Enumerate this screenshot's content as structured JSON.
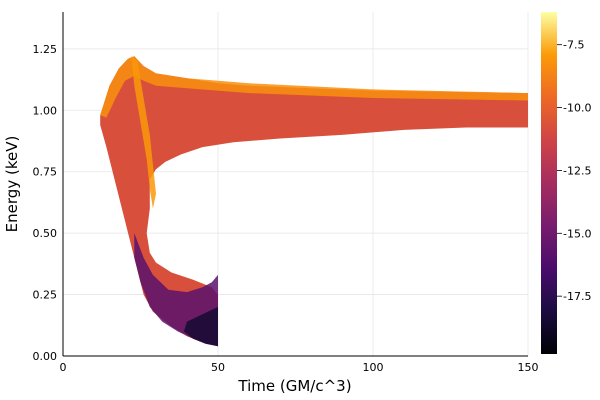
{
  "chart_data": {
    "type": "heatmap",
    "title": "",
    "xlabel": "Time (GM/c^3)",
    "ylabel": "Energy (keV)",
    "xlim": [
      0,
      150
    ],
    "ylim": [
      0,
      1.4
    ],
    "xticks": [
      0,
      50,
      100,
      150
    ],
    "xtick_labels": [
      "0",
      "50",
      "100",
      "150"
    ],
    "yticks": [
      0.0,
      0.25,
      0.5,
      0.75,
      1.0,
      1.25
    ],
    "ytick_labels": [
      "0.00",
      "0.25",
      "0.50",
      "0.75",
      "1.00",
      "1.25"
    ],
    "grid": true,
    "colorbar": {
      "colormap": "inferno",
      "range": [
        -19.8,
        -6.2
      ],
      "ticks": [
        -7.5,
        -10.0,
        -12.5,
        -15.0,
        -17.5
      ],
      "tick_labels": [
        "-7.5",
        "-10.0",
        "-12.5",
        "-15.0",
        "-17.5"
      ]
    },
    "regions": [
      {
        "name": "",
        "outline": [
          [
            12,
            0.98
          ],
          [
            15,
            1.1
          ],
          [
            18,
            1.17
          ],
          [
            21,
            1.21
          ],
          [
            23,
            1.22
          ],
          [
            26,
            1.18
          ],
          [
            30,
            1.15
          ],
          [
            40,
            1.13
          ],
          [
            50,
            1.11
          ],
          [
            60,
            1.1
          ],
          [
            80,
            1.09
          ],
          [
            100,
            1.08
          ],
          [
            125,
            1.075
          ],
          [
            150,
            1.07
          ],
          [
            150,
            0.93
          ],
          [
            130,
            0.93
          ],
          [
            110,
            0.92
          ],
          [
            90,
            0.9
          ],
          [
            70,
            0.885
          ],
          [
            55,
            0.87
          ],
          [
            45,
            0.85
          ],
          [
            38,
            0.82
          ],
          [
            33,
            0.79
          ],
          [
            30,
            0.76
          ],
          [
            28,
            0.72
          ],
          [
            28,
            0.6
          ],
          [
            27,
            0.5
          ],
          [
            28,
            0.42
          ],
          [
            30,
            0.38
          ],
          [
            35,
            0.34
          ],
          [
            42,
            0.31
          ],
          [
            48,
            0.28
          ],
          [
            50,
            0.25
          ],
          [
            50,
            0.04
          ],
          [
            47,
            0.05
          ],
          [
            44,
            0.06
          ],
          [
            40,
            0.08
          ],
          [
            35,
            0.12
          ],
          [
            32,
            0.15
          ],
          [
            29,
            0.18
          ],
          [
            26,
            0.25
          ],
          [
            23,
            0.4
          ],
          [
            20,
            0.55
          ],
          [
            17,
            0.7
          ],
          [
            14,
            0.85
          ],
          [
            12,
            0.94
          ]
        ],
        "color_value": -10.8
      },
      {
        "name": "",
        "outline": [
          [
            23,
            0.5
          ],
          [
            26,
            0.4
          ],
          [
            29,
            0.33
          ],
          [
            34,
            0.27
          ],
          [
            40,
            0.26
          ],
          [
            45,
            0.28
          ],
          [
            48,
            0.3
          ],
          [
            50,
            0.33
          ],
          [
            50,
            0.04
          ],
          [
            46,
            0.05
          ],
          [
            42,
            0.07
          ],
          [
            37,
            0.1
          ],
          [
            32,
            0.14
          ],
          [
            28,
            0.2
          ],
          [
            25,
            0.3
          ],
          [
            23,
            0.4
          ]
        ],
        "color_value": -15.8
      },
      {
        "name": "",
        "outline": [
          [
            40,
            0.14
          ],
          [
            45,
            0.17
          ],
          [
            50,
            0.2
          ],
          [
            50,
            0.04
          ],
          [
            46,
            0.05
          ],
          [
            42,
            0.07
          ],
          [
            39,
            0.1
          ]
        ],
        "color_value": -18.5
      },
      {
        "name": "",
        "outline": [
          [
            12,
            0.98
          ],
          [
            15,
            1.1
          ],
          [
            18,
            1.17
          ],
          [
            21,
            1.21
          ],
          [
            23,
            1.22
          ],
          [
            26,
            1.18
          ],
          [
            30,
            1.15
          ],
          [
            40,
            1.13
          ],
          [
            60,
            1.11
          ],
          [
            100,
            1.085
          ],
          [
            150,
            1.07
          ],
          [
            150,
            1.04
          ],
          [
            100,
            1.05
          ],
          [
            60,
            1.07
          ],
          [
            40,
            1.09
          ],
          [
            30,
            1.1
          ],
          [
            26,
            1.12
          ],
          [
            23,
            1.14
          ],
          [
            20,
            1.12
          ],
          [
            17,
            1.05
          ],
          [
            14,
            0.97
          ]
        ],
        "color_value": -8.3
      },
      {
        "name": "",
        "outline": [
          [
            22,
            1.22
          ],
          [
            24,
            1.2
          ],
          [
            26,
            1.05
          ],
          [
            28,
            0.9
          ],
          [
            29,
            0.78
          ],
          [
            30,
            0.66
          ],
          [
            29,
            0.6
          ],
          [
            28,
            0.68
          ],
          [
            27,
            0.8
          ],
          [
            25,
            0.95
          ],
          [
            23,
            1.1
          ]
        ],
        "color_value": -8.0
      }
    ]
  }
}
